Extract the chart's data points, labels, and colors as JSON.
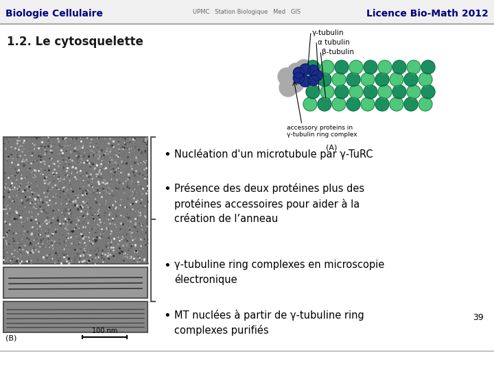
{
  "title_left": "Biologie Cellulaire",
  "title_right": "Licence Bio-Math 2012",
  "section_title": "1.2. Le cytosquelette",
  "bullet1": "Nucléation d'un microtubule par γ-TuRC",
  "bullet2": "Présence des deux protéines plus des\nprotéines accessoires pour aider à la\ncréation de l’anneau",
  "bullet3": "γ-tubuline ring complexes en microscopie\nélectronique",
  "bullet4": "MT nuclées à partir de γ-tubuline ring\ncomplexes purifiés",
  "page_number": "39",
  "label_B": "(B)",
  "label_100nm": "100 nm",
  "bg_color": "#ffffff"
}
